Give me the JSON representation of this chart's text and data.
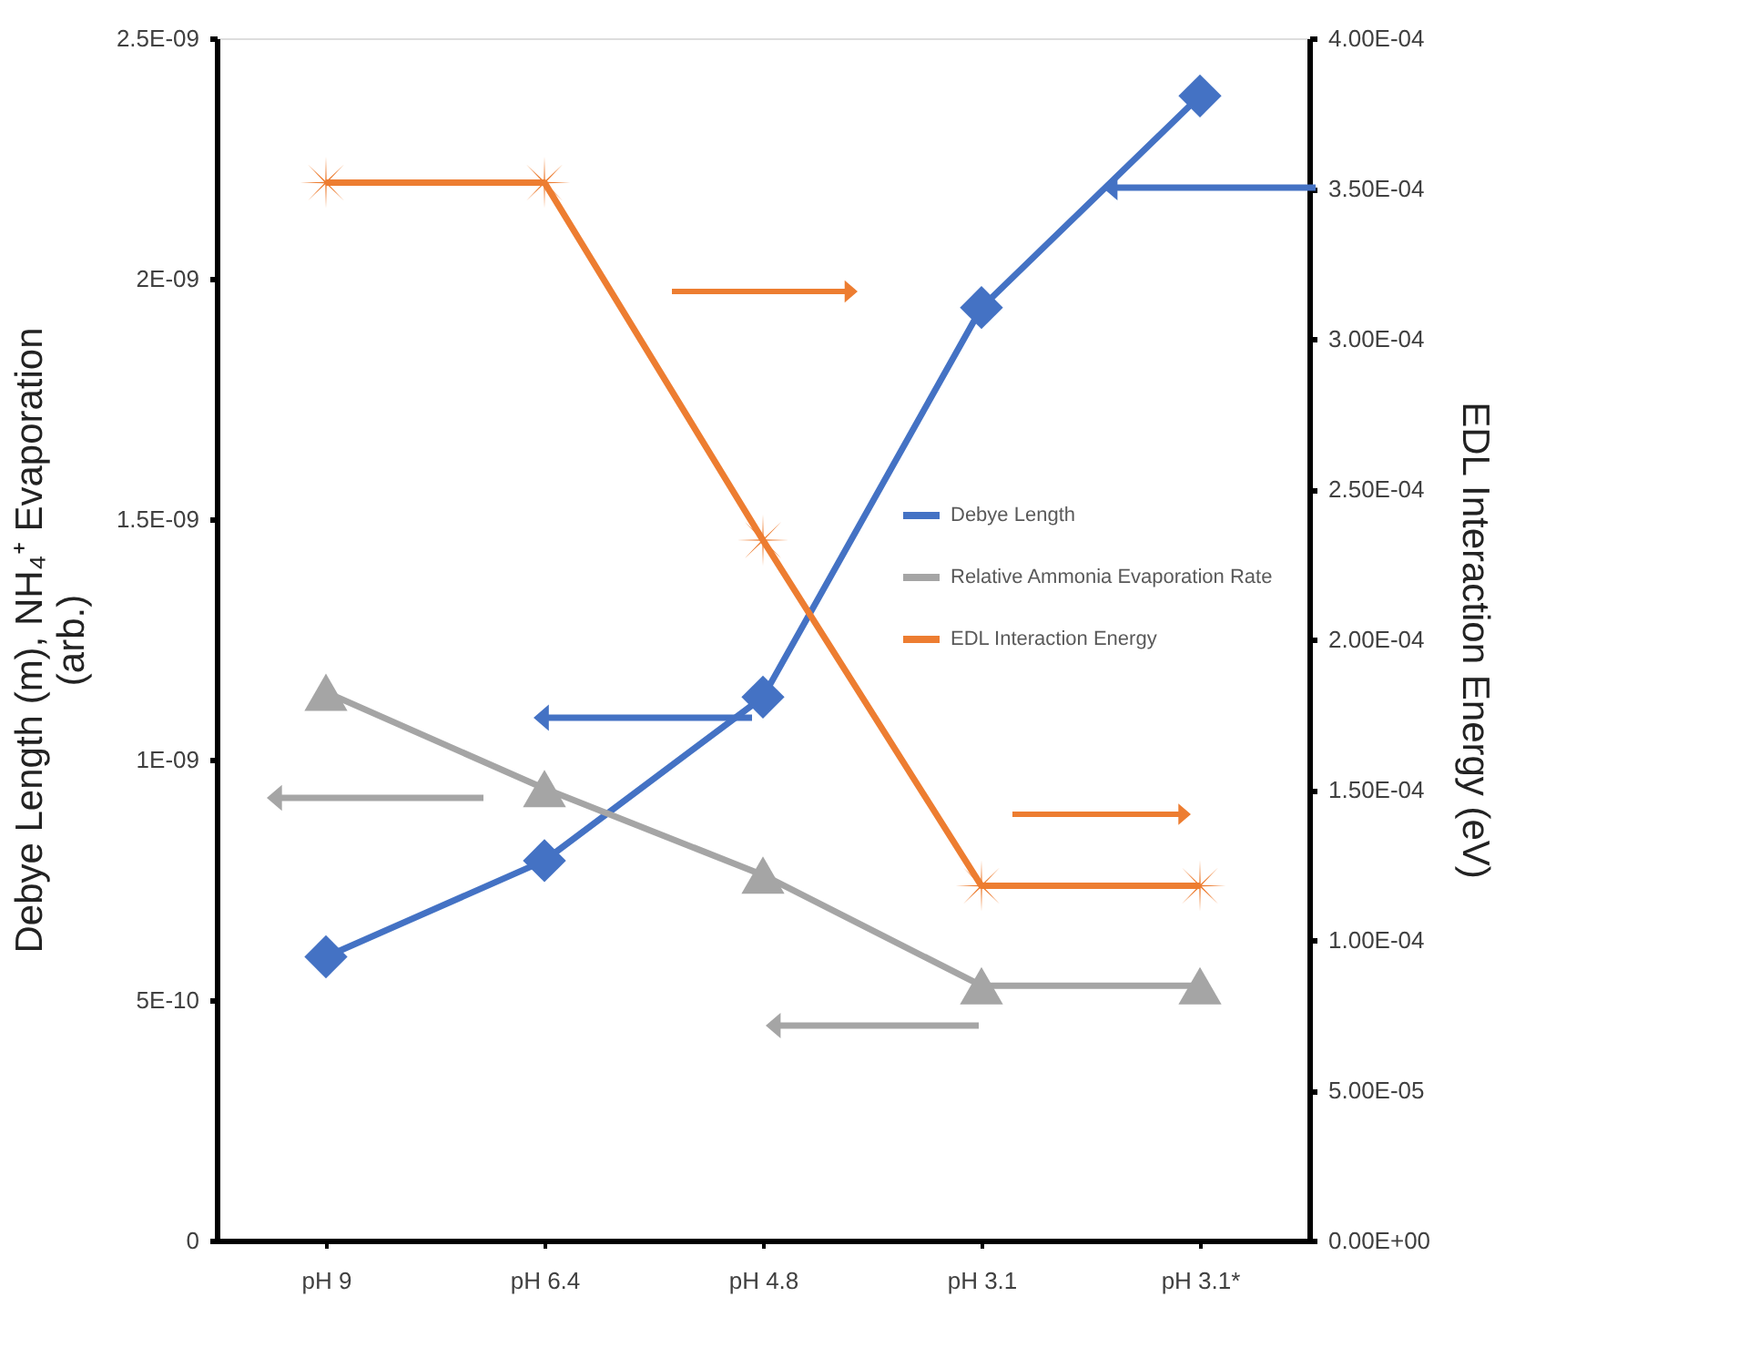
{
  "chart_data": {
    "type": "line",
    "categories": [
      "pH 9",
      "pH 6.4",
      "pH 4.8",
      "pH 3.1",
      "pH 3.1*"
    ],
    "ylabel": "Debye Length (m), NH₄⁺ Evaporation\n(arb.)",
    "y2label": "EDL Interaction Energy (eV)",
    "series": [
      {
        "name": "Debye Length",
        "color": "#4472c4",
        "marker": "diamond",
        "values": [
          5.9e-10,
          7.9e-10,
          1.13e-09,
          1.94e-09,
          2.38e-09
        ]
      },
      {
        "name": "Relative Ammonia Evaporation Rate",
        "color": "#a5a5a5",
        "marker": "triangle",
        "values": [
          1.14e-09,
          9.4e-10,
          7.6e-10,
          5.3e-10,
          5.3e-10
        ]
      },
      {
        "name": "EDL Interaction Energy",
        "color": "#ed7d31",
        "marker": "cross",
        "axis": "y2",
        "values": [
          0.000352,
          0.000352,
          0.000233,
          0.000118,
          0.000118
        ]
      }
    ],
    "ylim": [
      0,
      2.5e-09
    ],
    "yticks": [
      {
        "value": 0,
        "label": "0"
      },
      {
        "value": 5e-10,
        "label": "5E-10"
      },
      {
        "value": 1e-09,
        "label": "1E-09"
      },
      {
        "value": 1.5e-09,
        "label": "1.5E-09"
      },
      {
        "value": 2e-09,
        "label": "2E-09"
      },
      {
        "value": 2.5e-09,
        "label": "2.5E-09"
      }
    ],
    "y2lim": [
      0,
      0.0004
    ],
    "y2ticks": [
      {
        "value": 0,
        "label": "0.00E+00"
      },
      {
        "value": 5e-05,
        "label": "5.00E-05"
      },
      {
        "value": 0.0001,
        "label": "1.00E-04"
      },
      {
        "value": 0.00015,
        "label": "1.50E-04"
      },
      {
        "value": 0.0002,
        "label": "2.00E-04"
      },
      {
        "value": 0.00025,
        "label": "2.50E-04"
      },
      {
        "value": 0.0003,
        "label": "3.00E-04"
      },
      {
        "value": 0.00035,
        "label": "3.50E-04"
      },
      {
        "value": 0.0004,
        "label": "4.00E-04"
      }
    ],
    "grid": false,
    "legend": "right",
    "line_style": "solid"
  }
}
